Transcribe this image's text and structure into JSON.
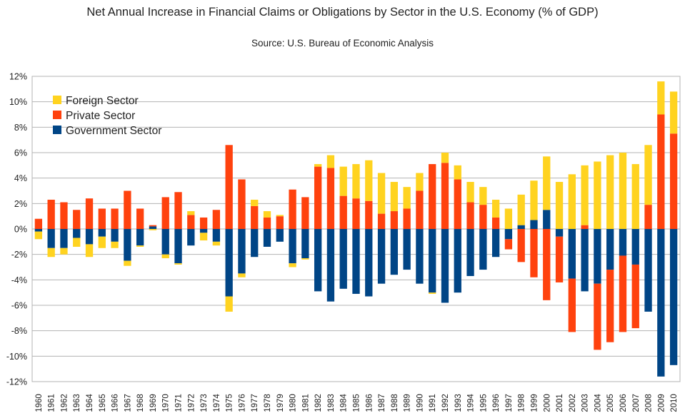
{
  "chart_data": {
    "type": "bar",
    "stacked": true,
    "title": "Net Annual Increase in Financial Claims or Obligations by Sector in the U.S. Economy (% of GDP)",
    "subtitle": "Source: U.S. Bureau of Economic Analysis",
    "xlabel": "",
    "ylabel": "",
    "ylim": [
      -12,
      12
    ],
    "ytick_step": 2,
    "yticks": [
      "-12%",
      "-10%",
      "-8%",
      "-6%",
      "-4%",
      "-2%",
      "0%",
      "2%",
      "4%",
      "6%",
      "8%",
      "10%",
      "12%"
    ],
    "grid": true,
    "legend_position": "top-left",
    "categories": [
      "1960",
      "1961",
      "1962",
      "1963",
      "1964",
      "1965",
      "1966",
      "1967",
      "1968",
      "1969",
      "1970",
      "1971",
      "1972",
      "1973",
      "1974",
      "1975",
      "1976",
      "1977",
      "1978",
      "1979",
      "1980",
      "1981",
      "1982",
      "1983",
      "1984",
      "1985",
      "1986",
      "1987",
      "1988",
      "1989",
      "1990",
      "1991",
      "1992",
      "1993",
      "1994",
      "1995",
      "1996",
      "1997",
      "1998",
      "1999",
      "2000",
      "2001",
      "2002",
      "2003",
      "2004",
      "2005",
      "2006",
      "2007",
      "2008",
      "2009",
      "2010"
    ],
    "series": [
      {
        "name": "Foreign Sector",
        "color": "#FFD320",
        "values": [
          -0.6,
          -0.7,
          -0.5,
          -0.7,
          -1.0,
          -0.9,
          -0.5,
          -0.4,
          -0.1,
          -0.1,
          -0.3,
          -0.1,
          0.3,
          -0.6,
          -0.3,
          -1.2,
          -0.3,
          0.5,
          0.5,
          0.1,
          -0.3,
          -0.1,
          0.2,
          1.0,
          2.3,
          2.7,
          3.2,
          3.2,
          2.3,
          1.7,
          1.4,
          -0.1,
          0.8,
          1.1,
          1.6,
          1.4,
          1.4,
          1.6,
          2.4,
          3.1,
          4.2,
          3.7,
          4.3,
          4.7,
          5.3,
          5.8,
          6.0,
          5.1,
          4.7,
          2.6,
          3.3
        ]
      },
      {
        "name": "Private Sector",
        "color": "#FF420E",
        "values": [
          0.8,
          2.3,
          2.1,
          1.5,
          2.4,
          1.6,
          1.6,
          3.0,
          1.6,
          0.1,
          2.5,
          2.9,
          1.1,
          0.9,
          1.5,
          6.6,
          3.9,
          1.8,
          0.9,
          1.0,
          3.1,
          2.5,
          4.9,
          4.8,
          2.6,
          2.4,
          2.2,
          1.2,
          1.4,
          1.6,
          3.0,
          5.1,
          5.2,
          3.9,
          2.1,
          1.9,
          0.9,
          -0.8,
          -2.6,
          -3.8,
          -5.6,
          -3.6,
          -4.2,
          0.3,
          -5.2,
          -5.7,
          -6.0,
          -5.0,
          1.9,
          9.0,
          7.5
        ]
      },
      {
        "name": "Government Sector",
        "color": "#004586",
        "values": [
          -0.2,
          -1.5,
          -1.5,
          -0.7,
          -1.2,
          -0.6,
          -1.0,
          -2.5,
          -1.3,
          0.2,
          -2.0,
          -2.7,
          -1.3,
          -0.3,
          -1.0,
          -5.3,
          -3.5,
          -2.2,
          -1.4,
          -1.0,
          -2.7,
          -2.3,
          -4.9,
          -5.7,
          -4.7,
          -5.1,
          -5.3,
          -4.3,
          -3.6,
          -3.2,
          -4.3,
          -5.0,
          -5.8,
          -5.0,
          -3.7,
          -3.2,
          -2.2,
          -0.8,
          0.3,
          0.7,
          1.5,
          -0.6,
          -3.9,
          -4.9,
          -4.3,
          -3.2,
          -2.1,
          -2.8,
          -6.5,
          -11.6,
          -10.7
        ]
      }
    ]
  }
}
